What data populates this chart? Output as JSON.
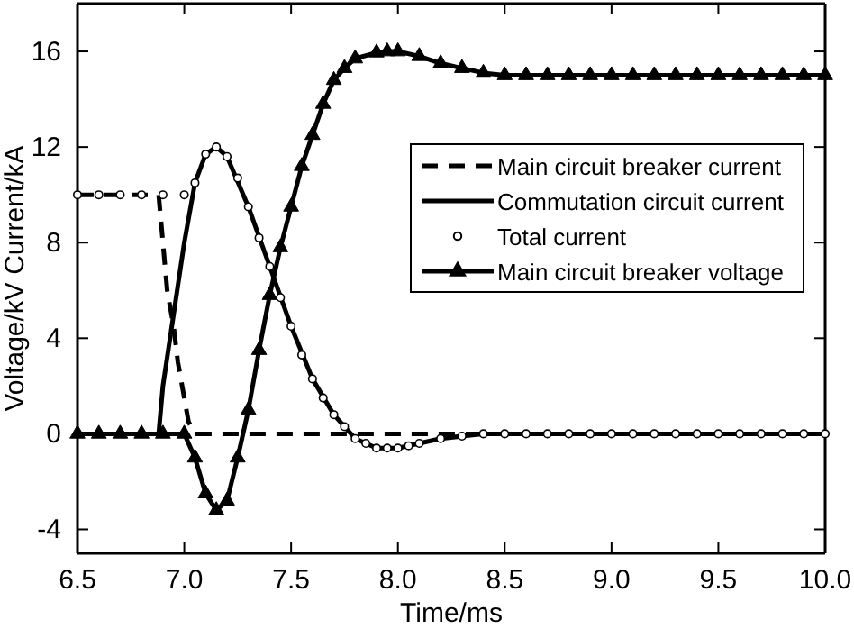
{
  "chart_data": {
    "type": "line",
    "xlabel": "Time/ms",
    "ylabel": "Voltage/kV  Current/kA",
    "xlim": [
      6.5,
      10.0
    ],
    "ylim": [
      -5,
      18
    ],
    "xticks": [
      {
        "value": 6.5,
        "label": "6.5"
      },
      {
        "value": 7,
        "label": "7.0"
      },
      {
        "value": 7.5,
        "label": "7.5"
      },
      {
        "value": 8,
        "label": "8.0"
      },
      {
        "value": 8.5,
        "label": "8.5"
      },
      {
        "value": 9,
        "label": "9.0"
      },
      {
        "value": 9.5,
        "label": "9.5"
      },
      {
        "value": 10,
        "label": "10.0"
      }
    ],
    "yticks": [
      -4,
      0,
      4,
      8,
      12,
      16
    ],
    "grid": false,
    "legend": "right",
    "series": [
      {
        "name": "Main circuit breaker current",
        "color": "#000000",
        "line_style": "dashed",
        "marker": "none",
        "x": [
          6.5,
          6.88,
          6.9,
          6.92,
          6.95,
          6.97,
          7.0,
          7.02,
          7.05,
          10.0
        ],
        "values": [
          10,
          10,
          8,
          6,
          4.5,
          3,
          1.5,
          0.5,
          0,
          0
        ]
      },
      {
        "name": "Commutation circuit current",
        "color": "#000000",
        "line_style": "solid",
        "marker": "none",
        "x": [
          6.5,
          6.88,
          6.9,
          6.95,
          7.0,
          7.05,
          7.1,
          7.15,
          7.2,
          7.3,
          7.4,
          7.5,
          7.6,
          7.7,
          7.8,
          7.9,
          8.0,
          8.1,
          8.2,
          8.4,
          10.0
        ],
        "values": [
          0,
          0,
          2,
          5,
          8,
          10.5,
          11.7,
          12,
          11.6,
          9.5,
          7,
          4.5,
          2.3,
          0.8,
          -0.2,
          -0.6,
          -0.6,
          -0.4,
          -0.2,
          0,
          0
        ]
      },
      {
        "name": "Total current",
        "type": "scatter",
        "color": "#000000",
        "marker": "circle",
        "x": [
          6.5,
          6.6,
          6.7,
          6.8,
          6.9,
          7.0,
          7.05,
          7.1,
          7.15,
          7.2,
          7.25,
          7.3,
          7.35,
          7.4,
          7.45,
          7.5,
          7.55,
          7.6,
          7.65,
          7.7,
          7.75,
          7.8,
          7.85,
          7.9,
          7.95,
          8.0,
          8.05,
          8.1,
          8.2,
          8.3,
          8.4,
          8.5,
          8.6,
          8.7,
          8.8,
          8.9,
          9.0,
          9.1,
          9.2,
          9.3,
          9.4,
          9.5,
          9.6,
          9.7,
          9.8,
          9.9,
          10.0
        ],
        "values": [
          10,
          10,
          10,
          10,
          10,
          10,
          10.5,
          11.7,
          12,
          11.6,
          10.7,
          9.5,
          8.2,
          7,
          5.7,
          4.5,
          3.3,
          2.3,
          1.5,
          0.8,
          0.3,
          -0.2,
          -0.4,
          -0.6,
          -0.6,
          -0.6,
          -0.5,
          -0.4,
          -0.2,
          -0.1,
          0,
          0,
          0,
          0,
          0,
          0,
          0,
          0,
          0,
          0,
          0,
          0,
          0,
          0,
          0,
          0,
          0
        ]
      },
      {
        "name": "Main circuit breaker voltage",
        "color": "#000000",
        "line_style": "solid",
        "marker": "triangle",
        "x": [
          6.5,
          6.6,
          6.7,
          6.8,
          6.9,
          7.0,
          7.05,
          7.1,
          7.15,
          7.2,
          7.25,
          7.3,
          7.35,
          7.4,
          7.45,
          7.5,
          7.55,
          7.6,
          7.65,
          7.7,
          7.75,
          7.8,
          7.9,
          7.95,
          8.0,
          8.1,
          8.2,
          8.3,
          8.4,
          8.5,
          8.6,
          8.7,
          8.8,
          8.9,
          9.0,
          9.1,
          9.2,
          9.3,
          9.4,
          9.5,
          9.6,
          9.7,
          9.8,
          9.9,
          10.0
        ],
        "values": [
          0,
          0,
          0,
          0,
          0,
          0,
          -1,
          -2.5,
          -3.2,
          -2.8,
          -1,
          1,
          3.5,
          5.8,
          7.8,
          9.5,
          11.2,
          12.5,
          13.8,
          14.8,
          15.3,
          15.7,
          15.95,
          16,
          16,
          15.8,
          15.5,
          15.3,
          15.1,
          15,
          15,
          15,
          15,
          15,
          15,
          15,
          15,
          15,
          15,
          15,
          15,
          15,
          15,
          15,
          15
        ]
      }
    ]
  }
}
